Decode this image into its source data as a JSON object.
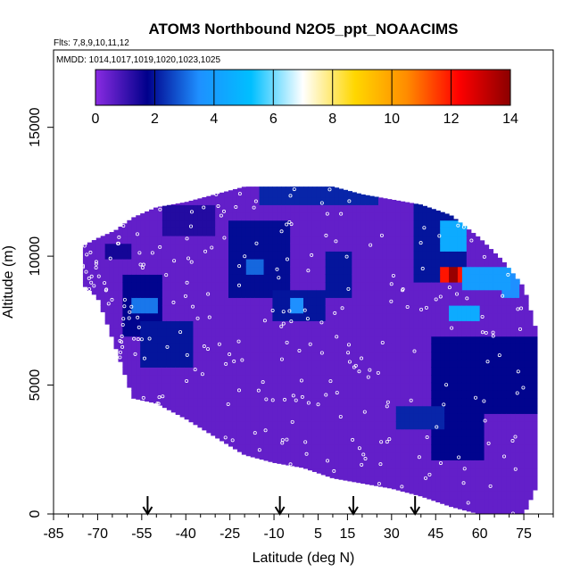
{
  "chart_data": {
    "type": "heatmap",
    "title": "ATOM3 Northbound N2O5_ppt_NOAACIMS",
    "flights_label": "Flts: 7,8,9,10,11,12",
    "dates_label": "MMDD: 1014,1017,1019,1020,1023,1025",
    "xlabel": "Latitude (deg N)",
    "ylabel": "Altitude (m)",
    "xlim": [
      -85,
      85
    ],
    "ylim": [
      0,
      18000
    ],
    "x_ticks": [
      -85,
      -70,
      -55,
      -40,
      -25,
      -10,
      5,
      15,
      30,
      45,
      60,
      75
    ],
    "x_tick_labels": [
      "-85",
      "-70",
      "-55",
      "-40",
      "-25",
      "-10",
      "5",
      "15",
      "30",
      "45",
      "60",
      "75"
    ],
    "y_ticks": [
      0,
      5000,
      10000,
      15000
    ],
    "y_tick_labels": [
      "0",
      "5000",
      "10000",
      "15000"
    ],
    "colorbar": {
      "min": 0,
      "max": 14,
      "ticks": [
        0,
        2,
        4,
        6,
        8,
        10,
        12,
        14
      ],
      "tick_labels": [
        "0",
        "2",
        "4",
        "6",
        "8",
        "10",
        "12",
        "14"
      ],
      "colors": [
        "#8a2be2",
        "#00008b",
        "#1e90ff",
        "#00bfff",
        "#ffffff",
        "#ffd700",
        "#ff8c00",
        "#ff0000",
        "#8b0000"
      ]
    },
    "arrow_latitudes": [
      -53,
      -8,
      17,
      38
    ],
    "envelope": [
      {
        "lat": -75,
        "bottom": 8900,
        "top": 10400
      },
      {
        "lat": -70,
        "bottom": 8400,
        "top": 10700
      },
      {
        "lat": -64,
        "bottom": 6500,
        "top": 11000
      },
      {
        "lat": -58,
        "bottom": 4500,
        "top": 11500
      },
      {
        "lat": -50,
        "bottom": 4300,
        "top": 11900
      },
      {
        "lat": -40,
        "bottom": 3700,
        "top": 12100
      },
      {
        "lat": -30,
        "bottom": 3000,
        "top": 12400
      },
      {
        "lat": -20,
        "bottom": 2300,
        "top": 12700
      },
      {
        "lat": -10,
        "bottom": 2000,
        "top": 12700
      },
      {
        "lat": 0,
        "bottom": 1800,
        "top": 12700
      },
      {
        "lat": 10,
        "bottom": 1400,
        "top": 12700
      },
      {
        "lat": 20,
        "bottom": 1200,
        "top": 12400
      },
      {
        "lat": 30,
        "bottom": 1000,
        "top": 12200
      },
      {
        "lat": 40,
        "bottom": 700,
        "top": 12000
      },
      {
        "lat": 50,
        "bottom": 300,
        "top": 11600
      },
      {
        "lat": 60,
        "bottom": 0,
        "top": 10700
      },
      {
        "lat": 68,
        "bottom": 0,
        "top": 9800
      },
      {
        "lat": 75,
        "bottom": 0,
        "top": 8800
      },
      {
        "lat": 79,
        "bottom": 1000,
        "top": 7200
      }
    ],
    "background_value": 0.5,
    "features": [
      {
        "lat": [
          -62,
          -48
        ],
        "alt": [
          7000,
          9400
        ],
        "value": 1.8
      },
      {
        "lat": [
          -58,
          -50
        ],
        "alt": [
          7900,
          8500
        ],
        "value": 3.2
      },
      {
        "lat": [
          -55,
          -38
        ],
        "alt": [
          5600,
          7400
        ],
        "value": 2.0
      },
      {
        "lat": [
          -68,
          -58
        ],
        "alt": [
          10000,
          10600
        ],
        "value": 1.5
      },
      {
        "lat": [
          -48,
          -30
        ],
        "alt": [
          10700,
          12000
        ],
        "value": 1.3
      },
      {
        "lat": [
          -25,
          -5
        ],
        "alt": [
          8300,
          11500
        ],
        "value": 1.9
      },
      {
        "lat": [
          -20,
          -14
        ],
        "alt": [
          9200,
          9800
        ],
        "value": 3.0
      },
      {
        "lat": [
          -10,
          8
        ],
        "alt": [
          7600,
          8600
        ],
        "value": 2.0
      },
      {
        "lat": [
          -4,
          0
        ],
        "alt": [
          7900,
          8300
        ],
        "value": 3.5
      },
      {
        "lat": [
          8,
          16
        ],
        "alt": [
          8400,
          10200
        ],
        "value": 2.0
      },
      {
        "lat": [
          -15,
          25
        ],
        "alt": [
          12000,
          12700
        ],
        "value": 2.2
      },
      {
        "lat": [
          32,
          48
        ],
        "alt": [
          3300,
          4200
        ],
        "value": 2.2
      },
      {
        "lat": [
          38,
          55
        ],
        "alt": [
          9000,
          12200
        ],
        "value": 2.0
      },
      {
        "lat": [
          46,
          56
        ],
        "alt": [
          10200,
          11400
        ],
        "value": 4.5
      },
      {
        "lat": [
          46,
          54
        ],
        "alt": [
          8900,
          9600
        ],
        "value": 12.0
      },
      {
        "lat": [
          49,
          53
        ],
        "alt": [
          9000,
          9500
        ],
        "value": 13.8
      },
      {
        "lat": [
          54,
          70
        ],
        "alt": [
          8600,
          9600
        ],
        "value": 4.0
      },
      {
        "lat": [
          50,
          60
        ],
        "alt": [
          7400,
          8200
        ],
        "value": 4.5
      },
      {
        "lat": [
          44,
          62
        ],
        "alt": [
          2200,
          7000
        ],
        "value": 1.8
      },
      {
        "lat": [
          62,
          80
        ],
        "alt": [
          4000,
          6800
        ],
        "value": 1.8
      },
      {
        "lat": [
          68,
          74
        ],
        "alt": [
          8400,
          9400
        ],
        "value": 3.5
      }
    ]
  }
}
